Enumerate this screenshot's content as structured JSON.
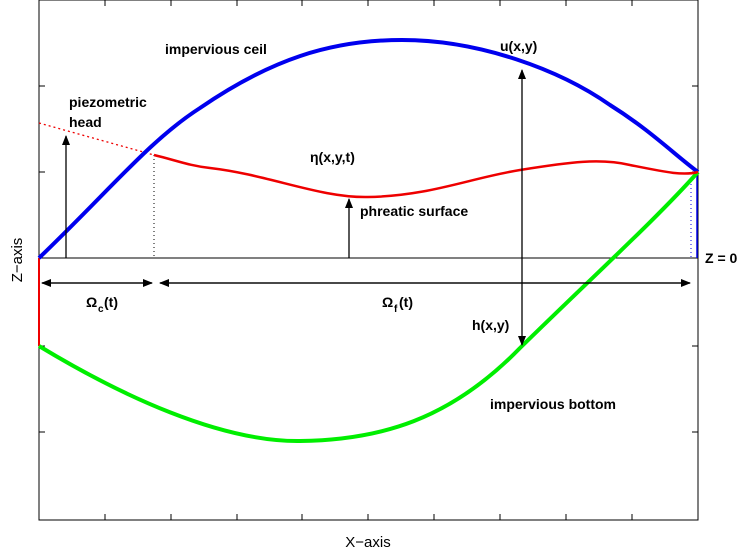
{
  "axes": {
    "x_label": "X−axis",
    "z_label": "Z−axis"
  },
  "labels": {
    "impervious_ceil": "impervious ceil",
    "impervious_bottom": "impervious bottom",
    "piezometric_head_1": "piezometric",
    "piezometric_head_2": "head",
    "eta": "η(x,y,t)",
    "phreatic_surface": "phreatic surface",
    "u": "u(x,y)",
    "h": "h(x,y)",
    "z0": "Z = 0",
    "omega_c": "Ω",
    "omega_c_sub": "c",
    "omega_c_arg": "(t)",
    "omega_f": "Ω",
    "omega_f_sub": "f",
    "omega_f_arg": "(t)"
  },
  "colors": {
    "ceil": "#0000ee",
    "bottom": "#00ee00",
    "phreatic": "#ee0000",
    "axis": "#000000"
  }
}
